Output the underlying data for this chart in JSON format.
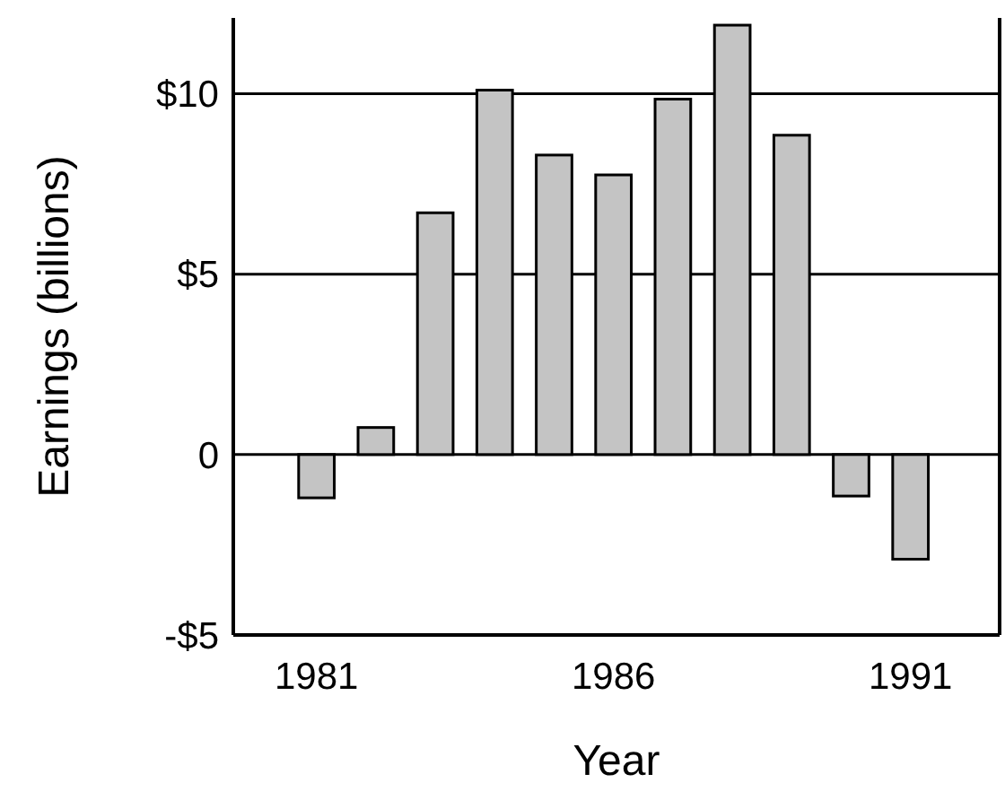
{
  "chart_data": {
    "type": "bar",
    "xlabel": "Year",
    "ylabel": "Earnings (billions)",
    "x": [
      1981,
      1982,
      1983,
      1984,
      1985,
      1986,
      1987,
      1988,
      1989,
      1990,
      1991
    ],
    "values": [
      -1.2,
      0.75,
      6.7,
      10.1,
      8.3,
      7.75,
      9.85,
      11.9,
      8.85,
      -1.15,
      -2.9
    ],
    "color": "#c4c4c4",
    "xlim": [
      1979.6,
      1992.5
    ],
    "xticks": [
      1981,
      1986,
      1991
    ],
    "ylim": [
      -5,
      12.1
    ],
    "yticks": [
      {
        "value": -5,
        "label": "-$5"
      },
      0,
      {
        "value": 5,
        "label": "$5"
      },
      {
        "value": 10,
        "label": "$10"
      }
    ],
    "grid": "y"
  }
}
